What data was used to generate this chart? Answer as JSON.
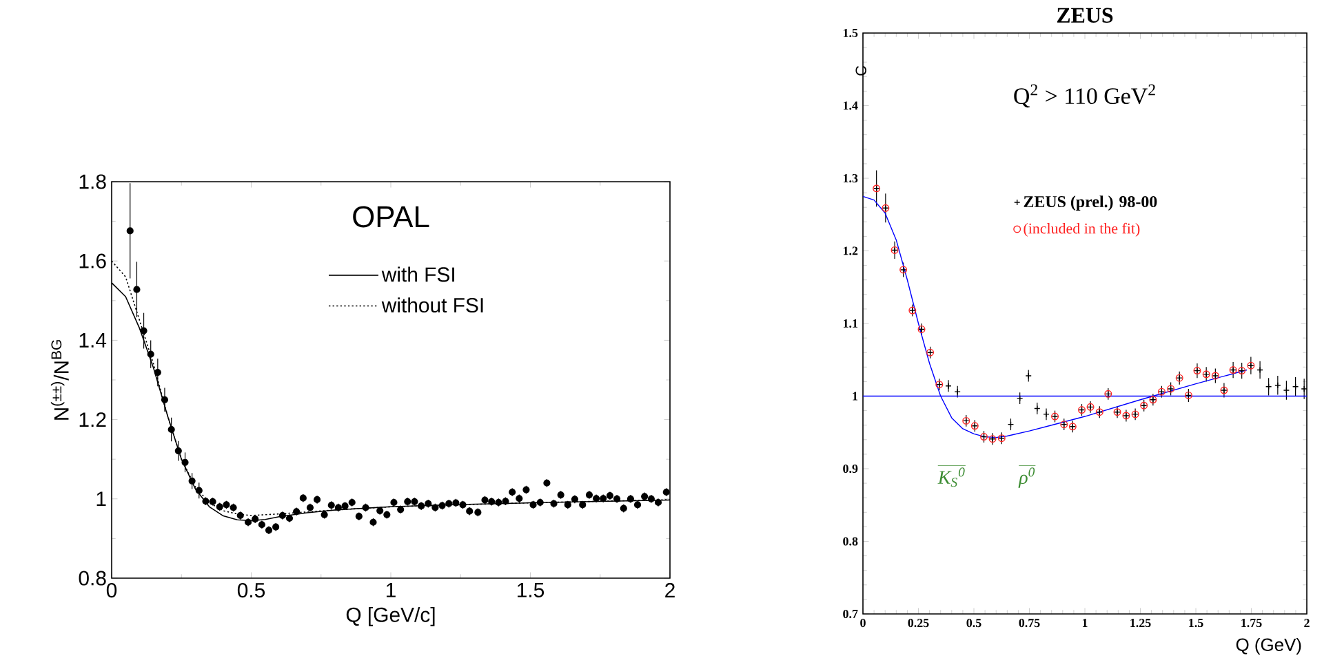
{
  "chart_data": [
    {
      "type": "scatter",
      "title": "OPAL",
      "xlabel": "Q  [GeV/c]",
      "ylabel": "N$^{(±±)}$/N$^{BG}$",
      "xlim": [
        0,
        2
      ],
      "ylim": [
        0.8,
        1.8
      ],
      "xticks": [
        0,
        0.5,
        1,
        1.5,
        2
      ],
      "yticks": [
        0.8,
        1,
        1.2,
        1.4,
        1.6,
        1.8
      ],
      "legend": "top",
      "grid": false,
      "series": [
        {
          "marker": "circle",
          "color": "#000000",
          "x": [
            0.066,
            0.09,
            0.115,
            0.14,
            0.165,
            0.19,
            0.214,
            0.239,
            0.263,
            0.288,
            0.313,
            0.337,
            0.362,
            0.387,
            0.411,
            0.436,
            0.461,
            0.489,
            0.514,
            0.538,
            0.563,
            0.588,
            0.612,
            0.637,
            0.662,
            0.686,
            0.711,
            0.736,
            0.762,
            0.787,
            0.812,
            0.836,
            0.861,
            0.886,
            0.91,
            0.937,
            0.961,
            0.986,
            1.011,
            1.035,
            1.06,
            1.085,
            1.109,
            1.134,
            1.159,
            1.184,
            1.208,
            1.233,
            1.258,
            1.282,
            1.312,
            1.337,
            1.361,
            1.386,
            1.411,
            1.435,
            1.46,
            1.485,
            1.51,
            1.535,
            1.559,
            1.584,
            1.609,
            1.634,
            1.659,
            1.687,
            1.711,
            1.736,
            1.761,
            1.785,
            1.81,
            1.834,
            1.859,
            1.884,
            1.909,
            1.933,
            1.958,
            1.987
          ],
          "values": [
            1.676,
            1.528,
            1.424,
            1.365,
            1.319,
            1.25,
            1.175,
            1.121,
            1.092,
            1.045,
            1.021,
            0.994,
            0.993,
            0.98,
            0.985,
            0.978,
            0.958,
            0.941,
            0.949,
            0.935,
            0.921,
            0.929,
            0.958,
            0.951,
            0.968,
            1.002,
            0.978,
            0.998,
            0.96,
            0.984,
            0.978,
            0.982,
            0.991,
            0.956,
            0.978,
            0.941,
            0.97,
            0.96,
            0.991,
            0.973,
            0.993,
            0.993,
            0.982,
            0.988,
            0.978,
            0.983,
            0.988,
            0.99,
            0.985,
            0.969,
            0.966,
            0.997,
            0.993,
            0.991,
            0.994,
            1.017,
            1.001,
            1.023,
            0.985,
            0.991,
            1.04,
            0.988,
            1.01,
            0.985,
            0.999,
            0.985,
            1.01,
            1.001,
            1.001,
            1.008,
            1.0,
            0.976,
            1.0,
            0.985,
            1.006,
            1.0,
            0.991,
            1.017
          ],
          "errors": [
            0.12,
            0.07,
            0.045,
            0.035,
            0.035,
            0.03,
            0.03,
            0.025,
            0.025,
            0.02,
            0.02,
            0.01,
            0.01,
            0.01,
            0.01,
            0.01,
            0.01,
            0.01,
            0.01,
            0.01,
            0.01,
            0.01,
            0.01,
            0.01,
            0.01,
            0.01,
            0.01,
            0.01,
            0.01,
            0.01,
            0.01,
            0.01,
            0.01,
            0.01,
            0.01,
            0.01,
            0.01,
            0.01,
            0.01,
            0.01,
            0.01,
            0.01,
            0.01,
            0.01,
            0.01,
            0.01,
            0.01,
            0.01,
            0.01,
            0.01,
            0.01,
            0.01,
            0.01,
            0.01,
            0.01,
            0.01,
            0.01,
            0.01,
            0.01,
            0.01,
            0.01,
            0.01,
            0.01,
            0.01,
            0.01,
            0.01,
            0.01,
            0.01,
            0.01,
            0.01,
            0.01,
            0.01,
            0.01,
            0.01,
            0.01,
            0.01,
            0.01,
            0.01
          ]
        },
        {
          "type": "line",
          "name": "with FSI",
          "color": "#000000",
          "line_style": "solid",
          "x": [
            0,
            0.05,
            0.1,
            0.15,
            0.2,
            0.25,
            0.3,
            0.35,
            0.4,
            0.45,
            0.5,
            0.55,
            0.6,
            0.7,
            0.8,
            1.0,
            1.2,
            1.5,
            2.0
          ],
          "values": [
            1.545,
            1.51,
            1.43,
            1.33,
            1.21,
            1.1,
            1.025,
            0.98,
            0.957,
            0.947,
            0.945,
            0.948,
            0.955,
            0.965,
            0.972,
            0.98,
            0.985,
            0.99,
            0.997
          ]
        },
        {
          "type": "line",
          "name": "without FSI",
          "color": "#000000",
          "line_style": "dotted",
          "x": [
            0,
            0.05,
            0.1,
            0.15,
            0.2,
            0.25,
            0.3,
            0.35,
            0.4,
            0.45,
            0.5,
            0.6,
            0.8,
            1.0,
            1.5,
            2.0
          ],
          "values": [
            1.6,
            1.56,
            1.45,
            1.34,
            1.21,
            1.1,
            1.03,
            0.99,
            0.97,
            0.962,
            0.958,
            0.962,
            0.972,
            0.98,
            0.99,
            0.998
          ]
        }
      ]
    },
    {
      "type": "scatter",
      "title": "ZEUS",
      "xlabel": "Q  (GeV)",
      "ylabel": "C",
      "xlim": [
        0,
        2
      ],
      "ylim": [
        0.7,
        1.5
      ],
      "xticks": [
        0,
        0.25,
        0.5,
        0.75,
        1,
        1.25,
        1.5,
        1.75,
        2
      ],
      "yticks": [
        0.7,
        0.8,
        0.9,
        1,
        1.1,
        1.2,
        1.3,
        1.4,
        1.5
      ],
      "legend": "top",
      "grid": false,
      "annotations": [
        "Q$^{2}$ > 110 GeV$^{2}$",
        "K$_{S}$$^{0}$",
        "ρ$^{0}$"
      ],
      "ref_lines": [
        {
          "axis": "y",
          "value": 1,
          "color": "#0000ff"
        }
      ],
      "series": [
        {
          "name": "ZEUS (prel.) 98-00",
          "marker": "cross",
          "color": "#000000",
          "x": [
            0.061,
            0.102,
            0.143,
            0.182,
            0.223,
            0.264,
            0.303,
            0.344,
            0.385,
            0.426,
            0.465,
            0.504,
            0.545,
            0.584,
            0.625,
            0.666,
            0.707,
            0.746,
            0.785,
            0.826,
            0.865,
            0.906,
            0.945,
            0.986,
            1.025,
            1.066,
            1.105,
            1.146,
            1.186,
            1.227,
            1.266,
            1.307,
            1.346,
            1.387,
            1.426,
            1.467,
            1.506,
            1.547,
            1.588,
            1.627,
            1.668,
            1.707,
            1.748,
            1.789,
            1.828,
            1.869,
            1.908,
            1.949,
            1.988
          ],
          "values": [
            1.286,
            1.259,
            1.201,
            1.174,
            1.118,
            1.092,
            1.06,
            1.016,
            1.014,
            1.006,
            0.966,
            0.959,
            0.944,
            0.941,
            0.942,
            0.961,
            0.997,
            1.028,
            0.983,
            0.975,
            0.972,
            0.961,
            0.958,
            0.981,
            0.985,
            0.978,
            1.003,
            0.978,
            0.973,
            0.975,
            0.987,
            0.995,
            1.006,
            1.01,
            1.025,
            1.001,
            1.035,
            1.03,
            1.028,
            1.008,
            1.036,
            1.035,
            1.042,
            1.036,
            1.013,
            1.015,
            1.008,
            1.013,
            1.01
          ],
          "errors": [
            0.025,
            0.02,
            0.012,
            0.01,
            0.008,
            0.008,
            0.008,
            0.008,
            0.008,
            0.008,
            0.008,
            0.008,
            0.008,
            0.008,
            0.008,
            0.008,
            0.008,
            0.008,
            0.008,
            0.008,
            0.008,
            0.008,
            0.008,
            0.008,
            0.008,
            0.008,
            0.008,
            0.008,
            0.008,
            0.008,
            0.008,
            0.008,
            0.008,
            0.009,
            0.009,
            0.009,
            0.01,
            0.01,
            0.01,
            0.01,
            0.011,
            0.011,
            0.012,
            0.012,
            0.012,
            0.013,
            0.013,
            0.013,
            0.014
          ]
        },
        {
          "name": "(included in the fit)",
          "marker": "circle",
          "color": "#ff2020",
          "x": [
            0.061,
            0.102,
            0.143,
            0.182,
            0.223,
            0.264,
            0.303,
            0.344,
            0.465,
            0.504,
            0.545,
            0.584,
            0.625,
            0.865,
            0.906,
            0.945,
            0.986,
            1.025,
            1.066,
            1.105,
            1.146,
            1.186,
            1.227,
            1.266,
            1.307,
            1.346,
            1.387,
            1.426,
            1.467,
            1.506,
            1.547,
            1.588,
            1.627,
            1.668,
            1.707,
            1.748
          ],
          "values": [
            1.286,
            1.259,
            1.201,
            1.174,
            1.118,
            1.092,
            1.06,
            1.016,
            0.966,
            0.959,
            0.944,
            0.941,
            0.942,
            0.972,
            0.961,
            0.958,
            0.981,
            0.985,
            0.978,
            1.003,
            0.978,
            0.973,
            0.975,
            0.987,
            0.995,
            1.006,
            1.01,
            1.025,
            1.001,
            1.035,
            1.03,
            1.028,
            1.008,
            1.036,
            1.035,
            1.042
          ]
        },
        {
          "type": "line",
          "color": "#0000ff",
          "line_style": "solid",
          "x": [
            0,
            0.05,
            0.1,
            0.15,
            0.2,
            0.25,
            0.3,
            0.35,
            0.4,
            0.45,
            0.5,
            0.55,
            0.6,
            0.65,
            0.75,
            0.85,
            1.0,
            1.25,
            1.5,
            1.73
          ],
          "values": [
            1.275,
            1.27,
            1.252,
            1.215,
            1.16,
            1.1,
            1.045,
            1.0,
            0.97,
            0.955,
            0.948,
            0.944,
            0.943,
            0.945,
            0.952,
            0.96,
            0.972,
            0.995,
            1.017,
            1.036
          ]
        }
      ]
    }
  ]
}
